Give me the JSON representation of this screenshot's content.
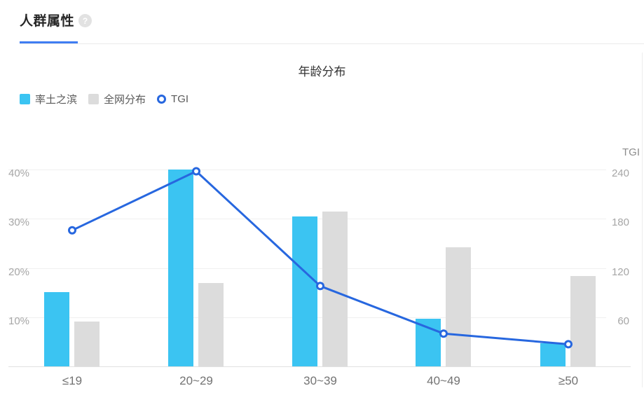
{
  "header": {
    "title": "人群属性",
    "help_icon": "?"
  },
  "chart_data": {
    "type": "bar",
    "title": "年龄分布",
    "categories": [
      "≤19",
      "20~29",
      "30~39",
      "40~49",
      "≥50"
    ],
    "series": [
      {
        "name": "率土之滨",
        "type": "bar",
        "axis": "left",
        "unit": "%",
        "color": "#3bc4f2",
        "values": [
          15.1,
          40,
          30.5,
          9.7,
          4.7
        ]
      },
      {
        "name": "全网分布",
        "type": "bar",
        "axis": "left",
        "unit": "%",
        "color": "#dcdcdc",
        "values": [
          9.1,
          17,
          31.5,
          24.2,
          18.4
        ]
      },
      {
        "name": "TGI",
        "type": "line",
        "axis": "right",
        "unit": "TGI",
        "color": "#2767df",
        "values": [
          166,
          238,
          98,
          40,
          27
        ]
      }
    ],
    "left_axis": {
      "ticks": [
        {
          "label": "10%",
          "value": 10
        },
        {
          "label": "20%",
          "value": 20
        },
        {
          "label": "30%",
          "value": 30
        },
        {
          "label": "40%",
          "value": 40
        }
      ],
      "range": [
        0,
        45
      ]
    },
    "right_axis": {
      "title": "TGI",
      "ticks": [
        {
          "label": "60",
          "value": 60
        },
        {
          "label": "120",
          "value": 120
        },
        {
          "label": "180",
          "value": 180
        },
        {
          "label": "240",
          "value": 240
        }
      ],
      "range": [
        0,
        270
      ]
    },
    "legend_position": "top-left",
    "grid": true
  },
  "accent_colors": {
    "tab_active": "#3f7df2",
    "bar_primary": "#3bc4f2",
    "bar_benchmark": "#dcdcdc",
    "line_tgi": "#2767df"
  }
}
